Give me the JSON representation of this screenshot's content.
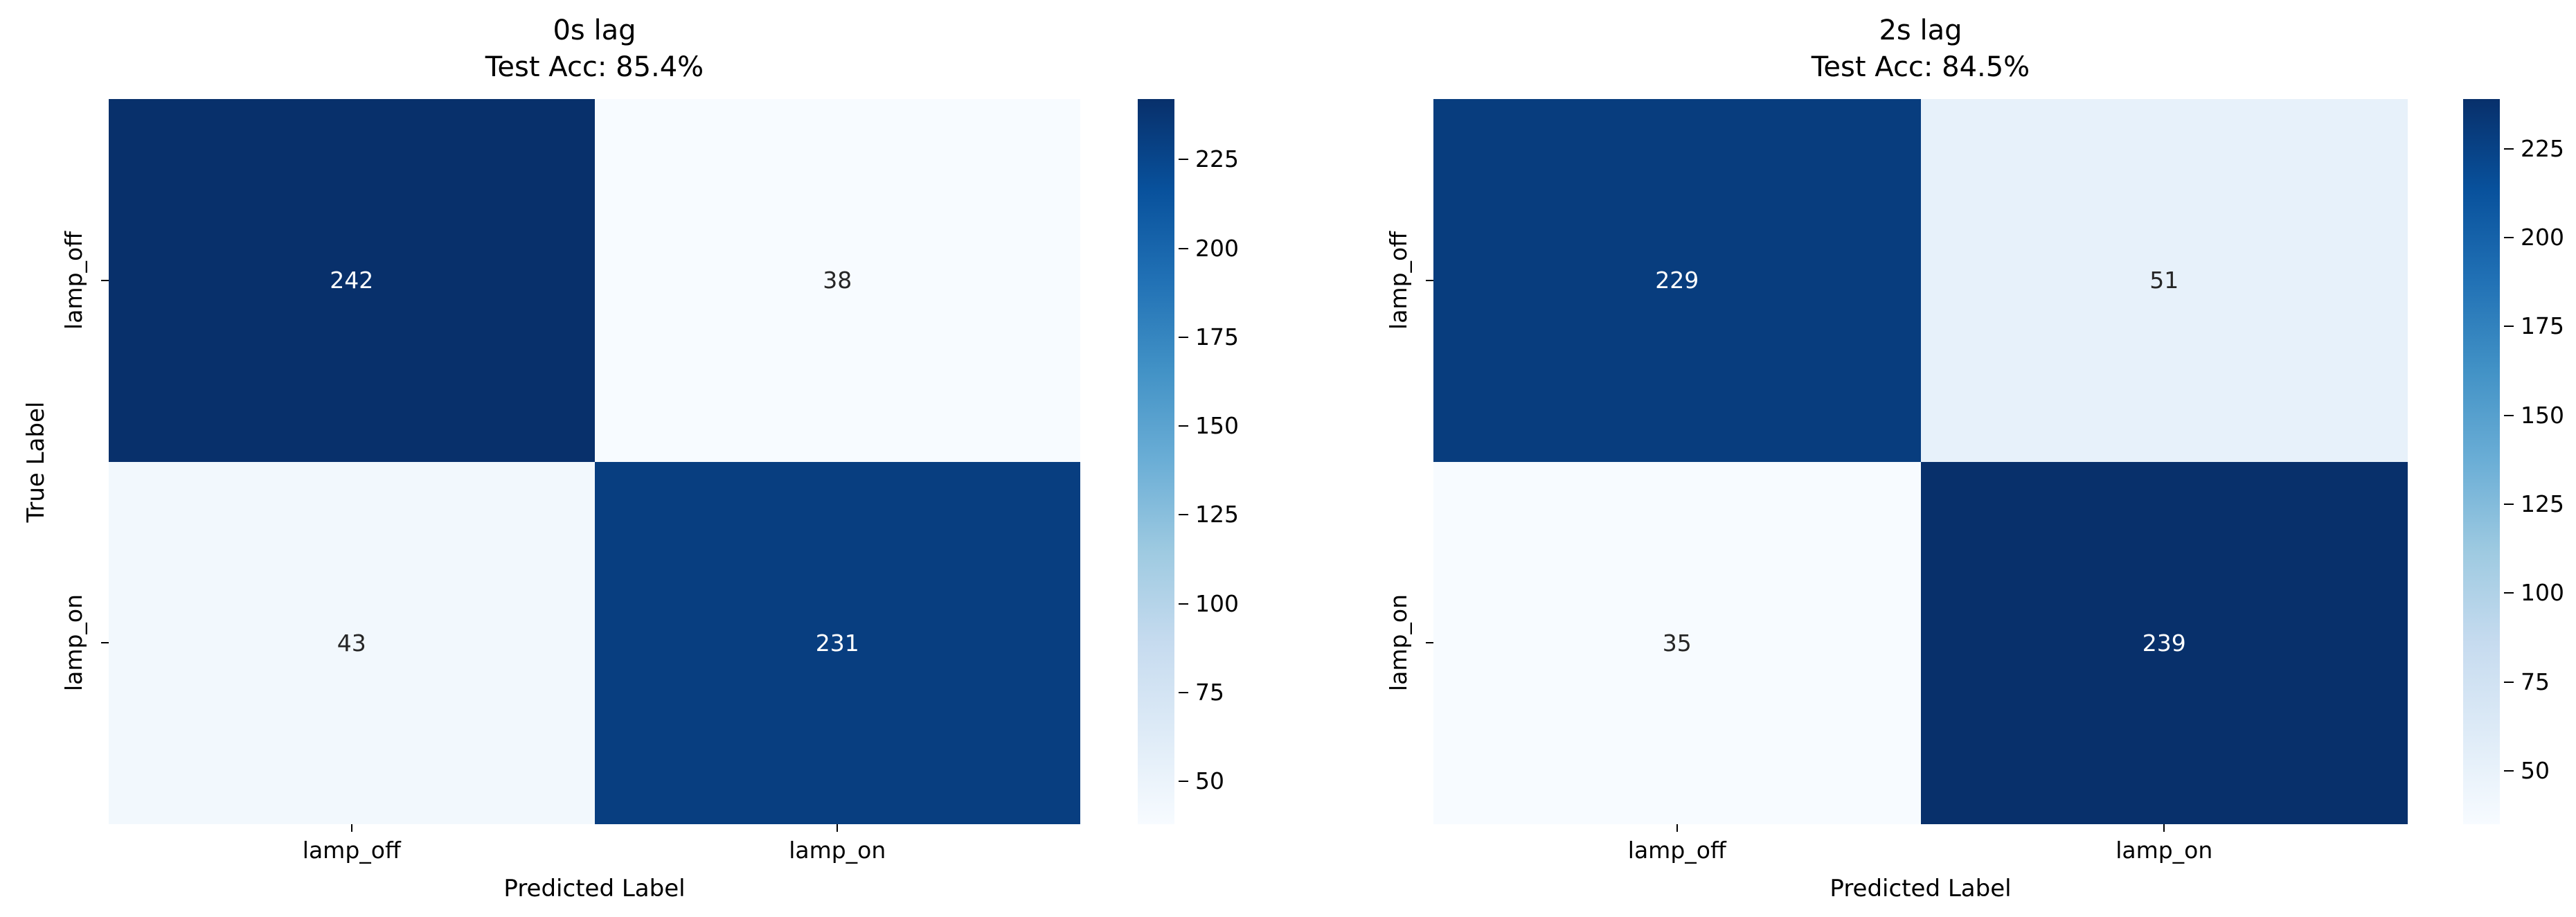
{
  "figure": {
    "background": "#ffffff",
    "text_color": "#000000",
    "annotation_light_text": "#ffffff",
    "annotation_dark_text": "#262626",
    "colormap_dark_end": "#08306b",
    "colormap_light_end": "#f7fbff"
  },
  "chart_data": [
    {
      "type": "heatmap",
      "title": "0s lag",
      "subtitle": "Test Acc: 85.4%",
      "xlabel": "Predicted Label",
      "ylabel": "True Label",
      "x_categories": [
        "lamp_off",
        "lamp_on"
      ],
      "y_categories": [
        "lamp_off",
        "lamp_on"
      ],
      "values": [
        [
          242,
          38
        ],
        [
          43,
          231
        ]
      ],
      "vmin": 38,
      "vmax": 242,
      "colormap": "Blues",
      "legend_position": "right-colorbar",
      "colorbar_ticks": [
        225,
        200,
        175,
        150,
        125,
        100,
        75,
        50
      ]
    },
    {
      "type": "heatmap",
      "title": "2s lag",
      "subtitle": "Test Acc: 84.5%",
      "xlabel": "Predicted Label",
      "ylabel": "",
      "x_categories": [
        "lamp_off",
        "lamp_on"
      ],
      "y_categories": [
        "lamp_off",
        "lamp_on"
      ],
      "values": [
        [
          229,
          51
        ],
        [
          35,
          239
        ]
      ],
      "vmin": 35,
      "vmax": 239,
      "colormap": "Blues",
      "legend_position": "right-colorbar",
      "colorbar_ticks": [
        225,
        200,
        175,
        150,
        125,
        100,
        75,
        50
      ]
    }
  ]
}
